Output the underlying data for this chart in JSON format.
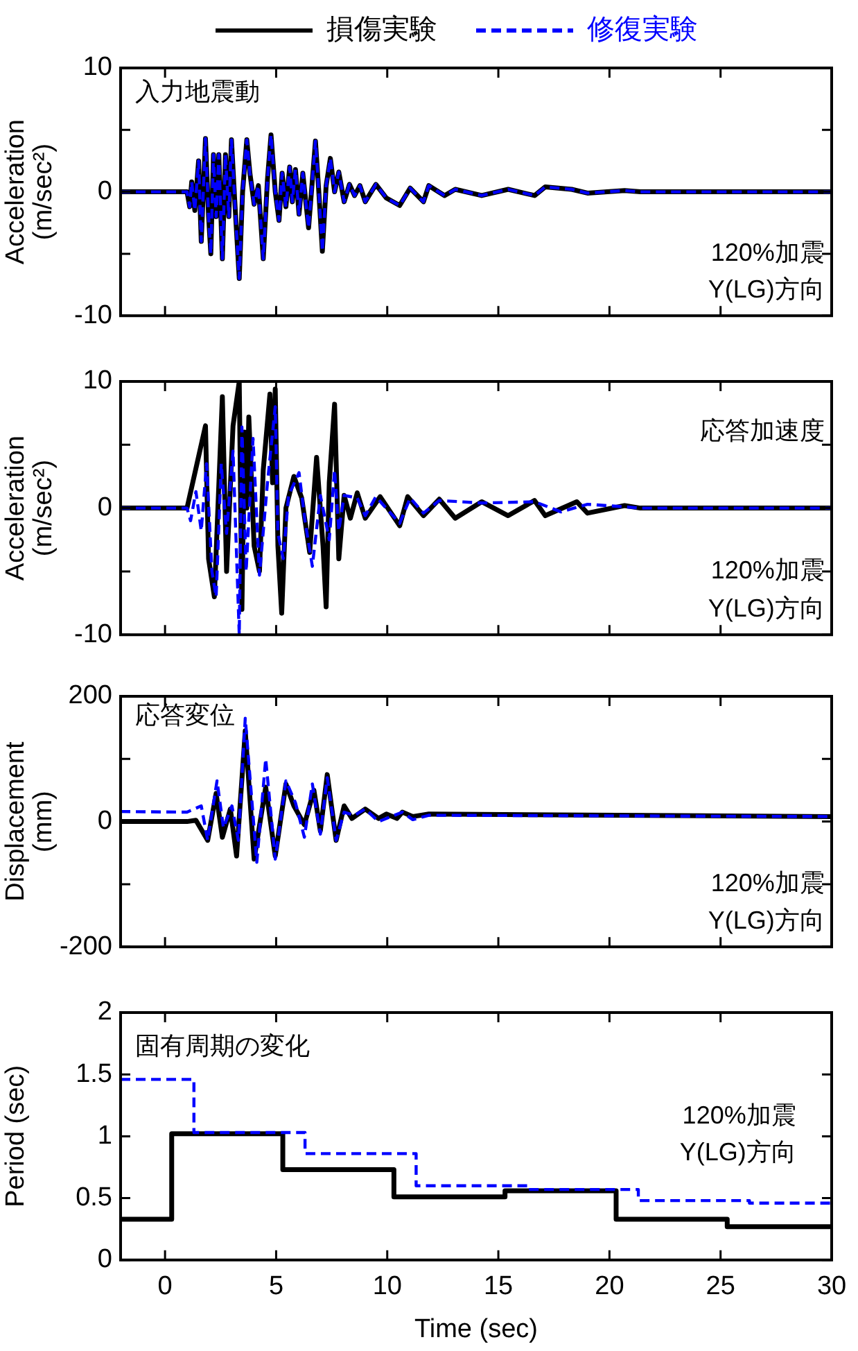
{
  "chart_data": [
    {
      "type": "line",
      "ylabel": "Acceleration\n(m/sec²)",
      "legend": "top",
      "marker": "none",
      "tick_labels": "y",
      "xlim": [
        -2,
        30
      ],
      "xticks": [
        0,
        5,
        10,
        15,
        20,
        25,
        30
      ],
      "ylim": [
        -10,
        10
      ],
      "yticks": [
        -10,
        {
          "value": -5,
          "label": null
        },
        0,
        {
          "value": 5,
          "label": null
        },
        10
      ],
      "annotations": [
        "入力地震動",
        "120%加震",
        "Y(LG)方向"
      ],
      "series": [
        {
          "name": "損傷実験",
          "color": "#000000",
          "line_style": "solid",
          "x": [
            -2,
            0.99,
            1.11,
            1.2,
            1.34,
            1.51,
            1.63,
            1.82,
            1.96,
            2.06,
            2.18,
            2.3,
            2.42,
            2.58,
            2.72,
            2.87,
            2.99,
            3.13,
            3.34,
            3.49,
            3.68,
            3.82,
            4.01,
            4.2,
            4.42,
            4.61,
            4.77,
            4.96,
            5.13,
            5.27,
            5.44,
            5.61,
            5.73,
            5.87,
            6.03,
            6.2,
            6.46,
            6.77,
            6.92,
            7.08,
            7.25,
            7.44,
            7.63,
            7.82,
            8.06,
            8.3,
            8.53,
            8.77,
            9.01,
            9.49,
            9.96,
            10.56,
            11.03,
            11.63,
            11.87,
            12.58,
            13.06,
            14.25,
            15.44,
            16.63,
            17.11,
            18.3,
            19.01,
            20.68,
            21.39,
            30
          ],
          "values": [
            0,
            0,
            -1.2,
            0.8,
            -1.5,
            2.5,
            -4,
            4.3,
            -2,
            -5,
            3,
            -2,
            3,
            -5.4,
            3,
            -2,
            4.2,
            -0.5,
            -7,
            0,
            4.2,
            1.5,
            -1,
            0.5,
            -5.4,
            1,
            4.6,
            0,
            -2.3,
            1.5,
            -1.2,
            2,
            -0.8,
            1.8,
            -1.8,
            1.5,
            -2.9,
            4.1,
            0,
            -4.8,
            0.5,
            2.7,
            0,
            1.6,
            -0.8,
            0.6,
            -0.3,
            0.5,
            -0.8,
            0.6,
            -0.5,
            -1.1,
            0.3,
            -0.8,
            0.5,
            -0.3,
            0.2,
            -0.3,
            0.2,
            -0.3,
            0.4,
            0.2,
            -0.1,
            0.1,
            0,
            0
          ]
        },
        {
          "name": "修復実験",
          "color": "#0000ff",
          "line_style": "dashed",
          "x": [
            -2,
            0.99,
            1.11,
            1.2,
            1.34,
            1.51,
            1.63,
            1.82,
            1.96,
            2.06,
            2.18,
            2.3,
            2.42,
            2.58,
            2.72,
            2.87,
            2.99,
            3.13,
            3.34,
            3.49,
            3.68,
            3.82,
            4.01,
            4.2,
            4.42,
            4.61,
            4.77,
            4.96,
            5.13,
            5.27,
            5.44,
            5.61,
            5.73,
            5.87,
            6.03,
            6.2,
            6.46,
            6.77,
            6.92,
            7.08,
            7.25,
            7.44,
            7.63,
            7.82,
            8.06,
            8.3,
            8.53,
            8.77,
            9.01,
            9.49,
            9.96,
            10.56,
            11.03,
            11.63,
            11.87,
            12.58,
            13.06,
            14.25,
            15.44,
            16.63,
            17.11,
            18.3,
            19.01,
            20.68,
            21.39,
            30
          ],
          "values": [
            0,
            0,
            -1.2,
            0.8,
            -1.5,
            2.5,
            -4,
            4.3,
            -2,
            -5,
            3,
            -2,
            3,
            -5.4,
            3,
            -2,
            4.2,
            -0.5,
            -7,
            0,
            4.2,
            1.5,
            -1,
            0.5,
            -5.4,
            1,
            4.6,
            0,
            -2.3,
            1.5,
            -1.2,
            2,
            -0.8,
            1.8,
            -1.8,
            1.5,
            -2.9,
            4.1,
            0,
            -4.8,
            0.5,
            2.7,
            0,
            1.6,
            -0.8,
            0.6,
            -0.3,
            0.5,
            -0.8,
            0.6,
            -0.5,
            -1.1,
            0.3,
            -0.8,
            0.5,
            -0.3,
            0.2,
            -0.3,
            0.2,
            -0.3,
            0.4,
            0.2,
            -0.1,
            0.1,
            0,
            0
          ]
        }
      ]
    },
    {
      "type": "line",
      "ylabel": "Acceleration\n(m/sec²)",
      "marker": "none",
      "tick_labels": "y",
      "xlim": [
        -2,
        30
      ],
      "xticks": [
        0,
        5,
        10,
        15,
        20,
        25,
        30
      ],
      "ylim": [
        -10,
        10
      ],
      "yticks": [
        -10,
        {
          "value": -5,
          "label": null
        },
        0,
        {
          "value": 5,
          "label": null
        },
        10
      ],
      "annotations": [
        "応答加速度",
        "120%加震",
        "Y(LG)方向"
      ],
      "series": [
        {
          "color": "#000000",
          "line_style": "solid",
          "x": [
            -2,
            0.99,
            1.82,
            1.96,
            2.22,
            2.58,
            2.77,
            3.06,
            3.34,
            3.46,
            3.58,
            3.68,
            3.77,
            4.01,
            4.25,
            4.42,
            4.72,
            4.84,
            4.96,
            5.08,
            5.25,
            5.44,
            5.8,
            6.15,
            6.51,
            6.82,
            7.11,
            7.25,
            7.39,
            7.63,
            7.82,
            8.06,
            8.34,
            8.65,
            9.01,
            9.68,
            10.56,
            10.92,
            11.63,
            12.34,
            13.06,
            14.25,
            15.44,
            16.63,
            17.11,
            18.53,
            19.01,
            20.68,
            21.39,
            30
          ],
          "values": [
            0,
            0,
            6.5,
            -4,
            -7,
            8.8,
            -5,
            6.5,
            10,
            -8,
            6,
            0,
            7.2,
            -3,
            -5,
            3,
            9,
            2,
            9.4,
            -3,
            -8.3,
            0,
            2.5,
            0.8,
            -3.5,
            4,
            -3,
            -7.8,
            2,
            8.2,
            -4,
            1,
            -0.8,
            1.2,
            -0.8,
            0.9,
            -1.4,
            0.9,
            -0.6,
            0.7,
            -0.8,
            0.5,
            -0.6,
            0.6,
            -0.6,
            0.5,
            -0.4,
            0.2,
            0,
            0
          ]
        },
        {
          "color": "#0000ff",
          "line_style": "dashed",
          "x": [
            -2,
            0.99,
            1.15,
            1.39,
            1.63,
            1.87,
            2.11,
            2.3,
            2.53,
            2.77,
            3.06,
            3.34,
            3.46,
            3.65,
            3.96,
            4.25,
            4.61,
            4.96,
            5.08,
            5.32,
            5.56,
            6.03,
            6.3,
            6.63,
            6.99,
            7.39,
            7.63,
            7.82,
            8.06,
            8.65,
            9.01,
            9.49,
            10.56,
            11.03,
            11.63,
            12.34,
            14.25,
            16.63,
            17.82,
            19.01,
            20.68,
            21.39,
            30
          ],
          "values": [
            0,
            0,
            -1,
            1.3,
            -1.8,
            3.5,
            -5,
            -7,
            3.5,
            -2,
            4.5,
            -10,
            6.4,
            -5,
            5.5,
            -5.3,
            2,
            8,
            -2,
            -4,
            1,
            2.8,
            -1,
            -4.6,
            1,
            -2.5,
            3,
            -1.8,
            1,
            0.8,
            -0.6,
            0.9,
            -1.2,
            0.8,
            -0.4,
            0.6,
            0.4,
            0.5,
            -0.3,
            0.3,
            0.1,
            0,
            0
          ]
        }
      ]
    },
    {
      "type": "line",
      "ylabel": "Displacement\n(mm)",
      "marker": "none",
      "tick_labels": "y",
      "xlim": [
        -2,
        30
      ],
      "xticks": [
        0,
        5,
        10,
        15,
        20,
        25,
        30
      ],
      "ylim": [
        -200,
        200
      ],
      "yticks": [
        -200,
        {
          "value": -100,
          "label": null
        },
        0,
        {
          "value": 100,
          "label": null
        },
        200
      ],
      "annotations": [
        "応答変位",
        "120%加震",
        "Y(LG)方向"
      ],
      "series": [
        {
          "color": "#000000",
          "line_style": "solid",
          "x": [
            -2,
            0.99,
            1.39,
            1.92,
            2.3,
            2.58,
            2.94,
            3.22,
            3.61,
            4.01,
            4.53,
            4.96,
            5.44,
            5.8,
            6.27,
            6.7,
            6.99,
            7.3,
            7.7,
            8.06,
            8.41,
            9.01,
            9.61,
            9.96,
            10.44,
            10.68,
            11.15,
            11.87,
            30
          ],
          "values": [
            0,
            0,
            2,
            -30,
            45,
            -25,
            20,
            -55,
            145,
            -60,
            55,
            -55,
            60,
            25,
            -5,
            50,
            -15,
            75,
            -30,
            25,
            5,
            20,
            5,
            12,
            5,
            15,
            8,
            12,
            8
          ]
        },
        {
          "color": "#0000ff",
          "line_style": "dashed",
          "x": [
            -2,
            0.99,
            1.63,
            1.92,
            2.34,
            2.63,
            3.01,
            3.3,
            3.61,
            4.13,
            4.53,
            4.96,
            5.44,
            5.87,
            6.27,
            6.63,
            6.99,
            7.3,
            7.7,
            8.06,
            8.53,
            9.01,
            9.61,
            10.68,
            11.15,
            11.87,
            30
          ],
          "values": [
            16,
            15,
            25,
            -30,
            65,
            -10,
            25,
            -30,
            165,
            -65,
            100,
            -60,
            65,
            30,
            -25,
            60,
            -20,
            70,
            -30,
            15,
            10,
            20,
            0,
            15,
            3,
            10,
            8
          ]
        }
      ]
    },
    {
      "type": "step",
      "ylabel": "Period (sec)",
      "xlabel": "Time (sec)",
      "marker": "none",
      "xlim": [
        -2,
        30
      ],
      "xticks": [
        0,
        5,
        10,
        15,
        20,
        25,
        30
      ],
      "ylim": [
        0,
        2
      ],
      "yticks": [
        0,
        0.5,
        1,
        1.5,
        2
      ],
      "annotations": [
        "固有周期の変化",
        "120%加震",
        "Y(LG)方向"
      ],
      "series": [
        {
          "color": "#000000",
          "line_style": "solid",
          "x": [
            -2,
            0.3,
            5.3,
            10.3,
            15.3,
            20.3,
            25.3,
            30
          ],
          "values": [
            0.33,
            1.02,
            0.73,
            0.51,
            0.56,
            0.33,
            0.27,
            0.27
          ]
        },
        {
          "color": "#0000ff",
          "line_style": "dashed",
          "x": [
            -2,
            1.3,
            6.3,
            11.3,
            16.3,
            21.3,
            26.3,
            30
          ],
          "values": [
            1.46,
            1.03,
            0.86,
            0.6,
            0.57,
            0.48,
            0.46,
            0.46
          ]
        }
      ]
    }
  ]
}
